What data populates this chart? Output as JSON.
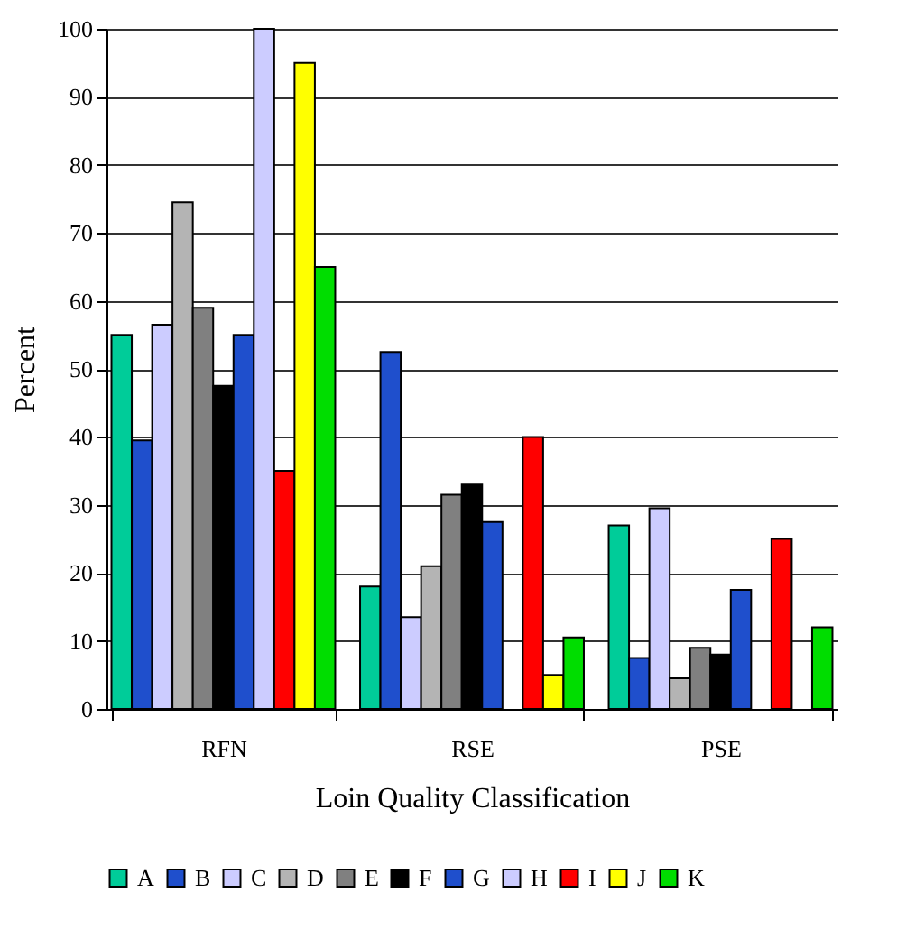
{
  "chart_data": {
    "type": "bar",
    "xlabel": "Loin Quality Classification",
    "ylabel": "Percent",
    "categories": [
      "RFN",
      "RSE",
      "PSE"
    ],
    "series": [
      {
        "name": "A",
        "color": "#00cc99",
        "values": [
          55,
          18,
          27
        ]
      },
      {
        "name": "B",
        "color": "#1f4fcc",
        "values": [
          39.5,
          52.5,
          7.5
        ]
      },
      {
        "name": "C",
        "color": "#ccccff",
        "values": [
          56.5,
          13.5,
          29.5
        ]
      },
      {
        "name": "D",
        "color": "#b4b4b4",
        "values": [
          74.5,
          21,
          4.5
        ]
      },
      {
        "name": "E",
        "color": "#808080",
        "values": [
          59,
          31.5,
          9
        ]
      },
      {
        "name": "F",
        "color": "#000000",
        "values": [
          47.5,
          33,
          8
        ]
      },
      {
        "name": "G",
        "color": "#1f4fcc",
        "values": [
          55,
          27.5,
          17.5
        ]
      },
      {
        "name": "H",
        "color": "#ccccff",
        "values": [
          100,
          null,
          null
        ]
      },
      {
        "name": "I",
        "color": "#ff0000",
        "values": [
          35,
          40,
          25
        ]
      },
      {
        "name": "J",
        "color": "#ffff00",
        "values": [
          95,
          5,
          null
        ]
      },
      {
        "name": "K",
        "color": "#00dd00",
        "values": [
          65,
          10.5,
          12
        ]
      }
    ],
    "ylim": [
      0,
      100
    ],
    "yticks": [
      0,
      10,
      20,
      30,
      40,
      50,
      60,
      70,
      80,
      90,
      100
    ],
    "grid": "y",
    "legend": "bottom"
  }
}
